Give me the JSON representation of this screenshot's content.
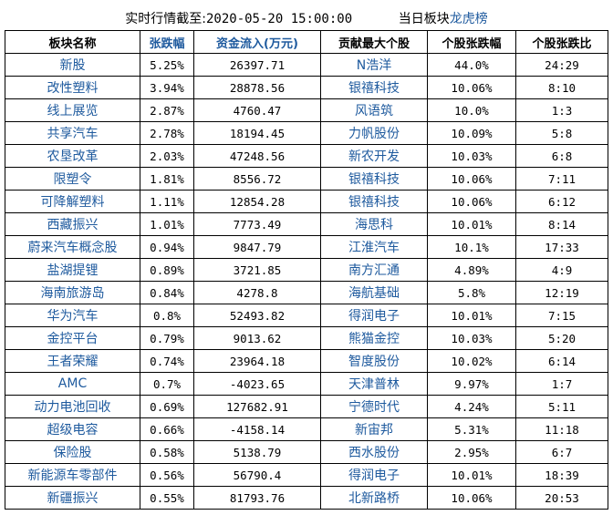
{
  "header": {
    "prefix": "实时行情截至:",
    "datetime": "2020-05-20 15:00:00",
    "board_text": "当日板块",
    "board_link": "龙虎榜"
  },
  "colors": {
    "link": "#1e5a9e",
    "text": "#000000"
  },
  "columns": [
    "板块名称",
    "张跌幅",
    "资金流入(万元)",
    "贡献最大个股",
    "个股张跌幅",
    "个股张跌比"
  ],
  "rows": [
    [
      "新股",
      "5.25%",
      "26397.71",
      "N浩洋",
      "44.0%",
      "24:29"
    ],
    [
      "改性塑料",
      "3.94%",
      "28878.56",
      "银禧科技",
      "10.06%",
      "8:10"
    ],
    [
      "线上展览",
      "2.87%",
      "4760.47",
      "风语筑",
      "10.0%",
      "1:3"
    ],
    [
      "共享汽车",
      "2.78%",
      "18194.45",
      "力帆股份",
      "10.09%",
      "5:8"
    ],
    [
      "农垦改革",
      "2.03%",
      "47248.56",
      "新农开发",
      "10.03%",
      "6:8"
    ],
    [
      "限塑令",
      "1.81%",
      "8556.72",
      "银禧科技",
      "10.06%",
      "7:11"
    ],
    [
      "可降解塑料",
      "1.11%",
      "12854.28",
      "银禧科技",
      "10.06%",
      "6:12"
    ],
    [
      "西藏振兴",
      "1.01%",
      "7773.49",
      "海思科",
      "10.01%",
      "8:14"
    ],
    [
      "蔚来汽车概念股",
      "0.94%",
      "9847.79",
      "江淮汽车",
      "10.1%",
      "17:33"
    ],
    [
      "盐湖提锂",
      "0.89%",
      "3721.85",
      "南方汇通",
      "4.89%",
      "4:9"
    ],
    [
      "海南旅游岛",
      "0.84%",
      "4278.8",
      "海航基础",
      "5.8%",
      "12:19"
    ],
    [
      "华为汽车",
      "0.8%",
      "52493.82",
      "得润电子",
      "10.01%",
      "7:15"
    ],
    [
      "金控平台",
      "0.79%",
      "9013.62",
      "熊猫金控",
      "10.03%",
      "5:20"
    ],
    [
      "王者荣耀",
      "0.74%",
      "23964.18",
      "智度股份",
      "10.02%",
      "6:14"
    ],
    [
      "AMC",
      "0.7%",
      "-4023.65",
      "天津普林",
      "9.97%",
      "1:7"
    ],
    [
      "动力电池回收",
      "0.69%",
      "127682.91",
      "宁德时代",
      "4.24%",
      "5:11"
    ],
    [
      "超级电容",
      "0.66%",
      "-4158.14",
      "新宙邦",
      "5.31%",
      "11:18"
    ],
    [
      "保险股",
      "0.58%",
      "5138.79",
      "西水股份",
      "2.95%",
      "6:7"
    ],
    [
      "新能源车零部件",
      "0.56%",
      "56790.4",
      "得润电子",
      "10.01%",
      "18:39"
    ],
    [
      "新疆振兴",
      "0.55%",
      "81793.76",
      "北新路桥",
      "10.06%",
      "20:53"
    ]
  ]
}
